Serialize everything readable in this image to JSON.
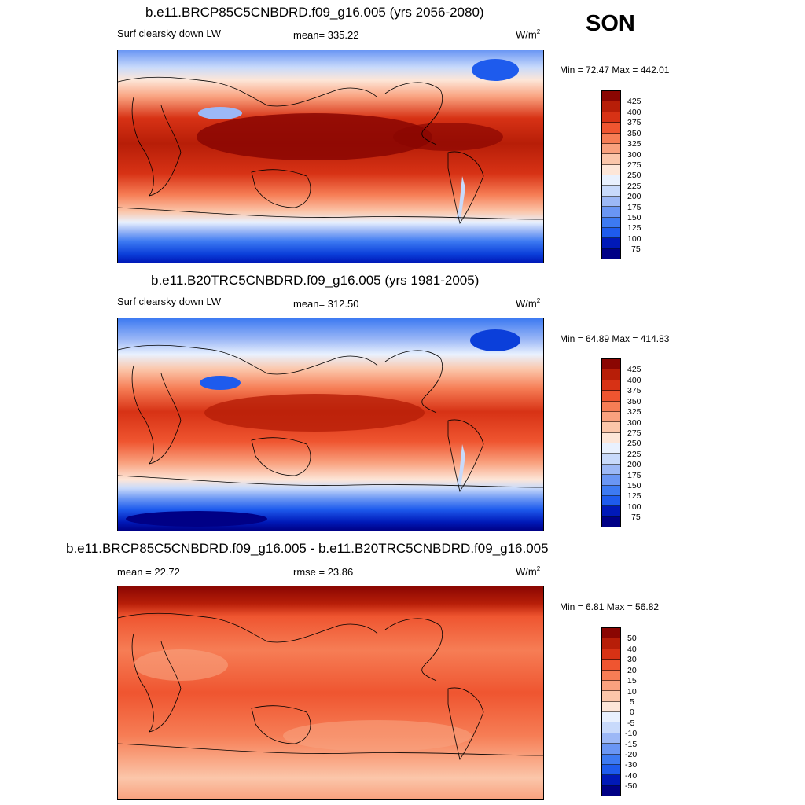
{
  "season": "SON",
  "units_base": "W/m",
  "units_sup": "2",
  "colors": {
    "abs_scale": [
      "#000086",
      "#0019b8",
      "#0b3fda",
      "#1e5bed",
      "#3d7af2",
      "#6a96f4",
      "#9cb8f6",
      "#c8dafb",
      "#e9f1fe",
      "#fde6d8",
      "#fbc6aa",
      "#f9a17e",
      "#f67d55",
      "#ef5530",
      "#d73215",
      "#b71e08",
      "#8a0602"
    ],
    "diff_scale": [
      "#000086",
      "#0019b8",
      "#0b3fda",
      "#1e5bed",
      "#3d7af2",
      "#6a96f4",
      "#9cb8f6",
      "#c8dafb",
      "#e9f1fe",
      "#fde6d8",
      "#fbc6aa",
      "#f9a17e",
      "#f67d55",
      "#ef5530",
      "#d73215",
      "#b71e08",
      "#8a0602"
    ]
  },
  "panels": [
    {
      "title": "b.e11.BRCP85C5CNBDRD.f09_g16.005 (yrs 2056-2080)",
      "left_label": "Surf clearsky down LW",
      "center_label": "mean= 335.22",
      "min_max": "Min =  72.47 Max = 442.01",
      "colorbar_labels": [
        "425",
        "400",
        "375",
        "350",
        "325",
        "300",
        "275",
        "250",
        "225",
        "200",
        "175",
        "150",
        "125",
        "100",
        "75"
      ]
    },
    {
      "title": "b.e11.B20TRC5CNBDRD.f09_g16.005 (yrs 1981-2005)",
      "left_label": "Surf clearsky down LW",
      "center_label": "mean= 312.50",
      "min_max": "Min =  64.89 Max = 414.83",
      "colorbar_labels": [
        "425",
        "400",
        "375",
        "350",
        "325",
        "300",
        "275",
        "250",
        "225",
        "200",
        "175",
        "150",
        "125",
        "100",
        "75"
      ]
    },
    {
      "title": "b.e11.BRCP85C5CNBDRD.f09_g16.005 - b.e11.B20TRC5CNBDRD.f09_g16.005",
      "left_label": "mean =  22.72",
      "center_label": "rmse =  23.86",
      "min_max": "Min =   6.81 Max =  56.82",
      "colorbar_labels": [
        "50",
        "40",
        "30",
        "20",
        "15",
        "10",
        "5",
        "0",
        "-5",
        "-10",
        "-15",
        "-20",
        "-30",
        "-40",
        "-50"
      ]
    }
  ]
}
